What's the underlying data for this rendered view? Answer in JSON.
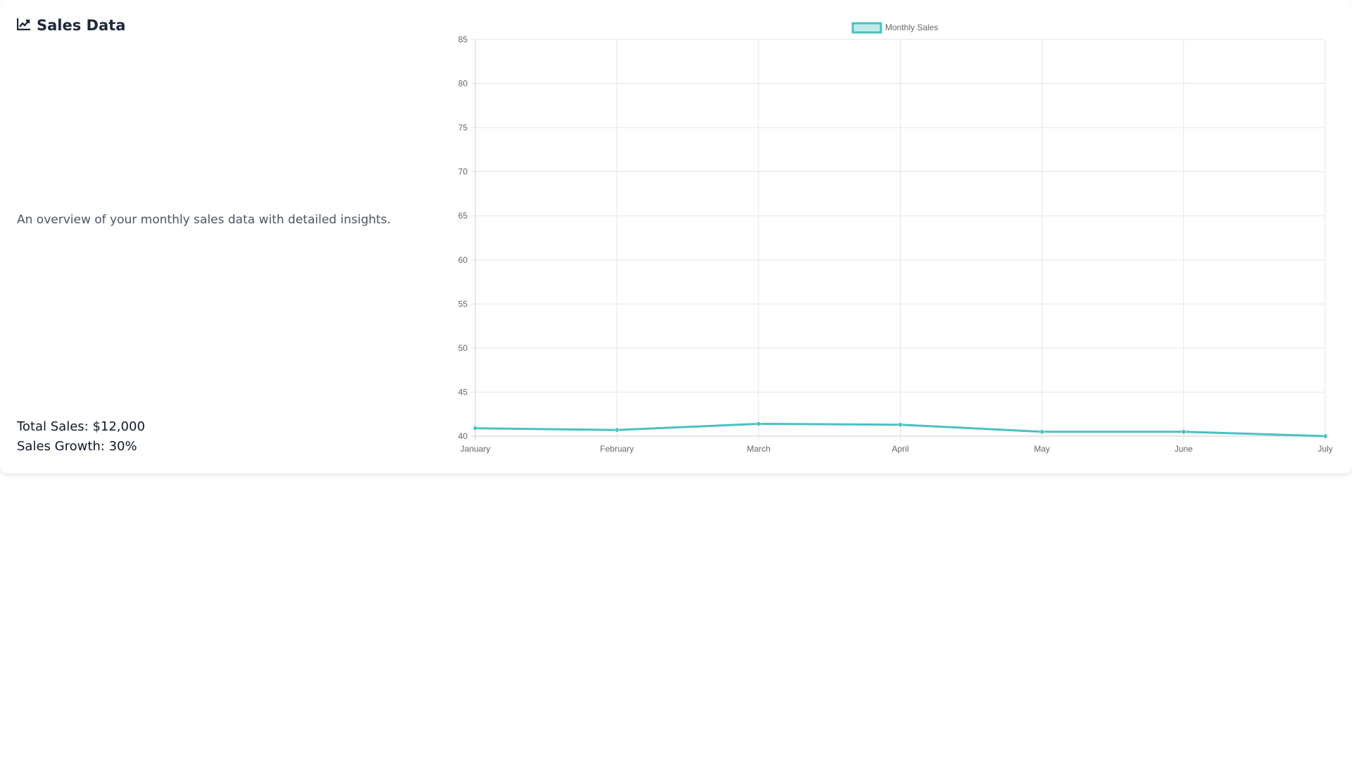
{
  "header": {
    "title": "Sales Data",
    "icon": "chart-line-icon"
  },
  "description": "An overview of your monthly sales data with detailed insights.",
  "stats": {
    "total_sales": "Total Sales: $12,000",
    "sales_growth": "Sales Growth: 30%"
  },
  "chart_data": {
    "type": "line",
    "categories": [
      "January",
      "February",
      "March",
      "April",
      "May",
      "June",
      "July"
    ],
    "series": [
      {
        "name": "Monthly Sales",
        "values": [
          40.9,
          40.7,
          41.4,
          41.3,
          40.5,
          40.5,
          40.0
        ],
        "color": "#4bc0c0"
      }
    ],
    "ylim": [
      40,
      85
    ],
    "yticks": [
      40,
      45,
      50,
      55,
      60,
      65,
      70,
      75,
      80,
      85
    ],
    "grid": true,
    "legend": "top"
  }
}
